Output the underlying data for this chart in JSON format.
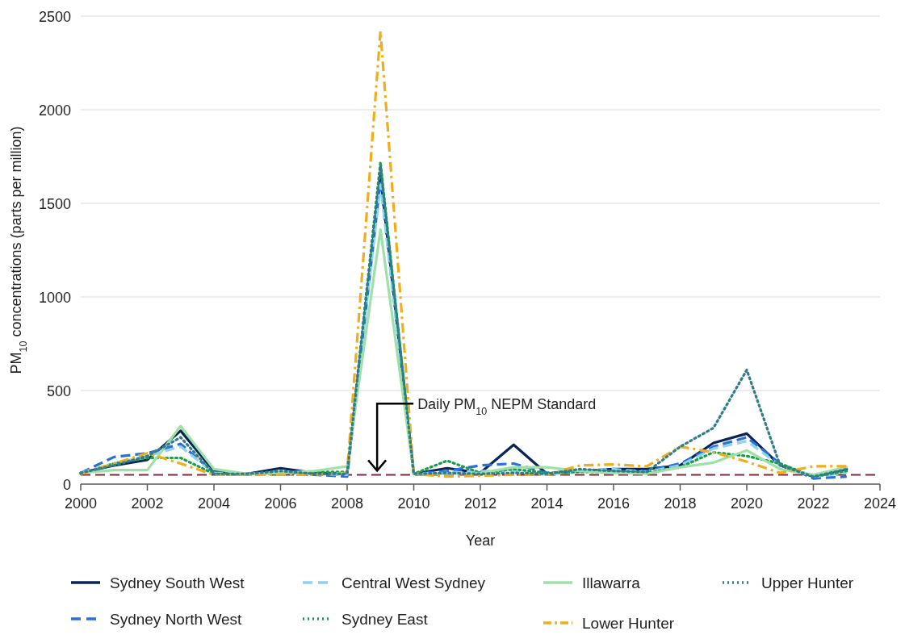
{
  "chart_data": {
    "type": "line",
    "xlabel": "Year",
    "ylabel": "PM$_{10}$ concentrations (parts per million)",
    "x": [
      2000,
      2001,
      2002,
      2003,
      2004,
      2005,
      2006,
      2007,
      2008,
      2009,
      2010,
      2011,
      2012,
      2013,
      2014,
      2015,
      2016,
      2017,
      2018,
      2019,
      2020,
      2021,
      2022,
      2023
    ],
    "xlim": [
      2000,
      2024
    ],
    "xticks": [
      2000,
      2002,
      2004,
      2006,
      2008,
      2010,
      2012,
      2014,
      2016,
      2018,
      2020,
      2022,
      2024
    ],
    "ylim": [
      0,
      2500
    ],
    "yticks": [
      0,
      500,
      1000,
      1500,
      2000,
      2500
    ],
    "grid": "y",
    "legend": "bottom",
    "ref_lines": [
      {
        "axis": "y",
        "value": 50,
        "label": "Daily PM$_{10}$ NEPM Standard",
        "color": "#7a2a3a",
        "line_style": "dashed"
      }
    ],
    "series": [
      {
        "name": "Sydney South West",
        "color": "#0a2457",
        "line_style": "solid",
        "values": [
          60,
          100,
          130,
          285,
          70,
          55,
          85,
          60,
          55,
          1650,
          55,
          85,
          60,
          210,
          55,
          70,
          80,
          80,
          100,
          220,
          270,
          100,
          40,
          80
        ]
      },
      {
        "name": "Sydney North West",
        "color": "#2a6fdb",
        "line_style": "dashed",
        "values": [
          60,
          145,
          165,
          215,
          60,
          55,
          60,
          50,
          40,
          1620,
          55,
          70,
          100,
          110,
          60,
          70,
          75,
          70,
          110,
          200,
          250,
          110,
          30,
          40
        ]
      },
      {
        "name": "Central West Sydney",
        "color": "#8fd3f0",
        "line_style": "dashed",
        "values": [
          60,
          110,
          150,
          200,
          60,
          55,
          60,
          55,
          50,
          1600,
          55,
          60,
          70,
          70,
          50,
          70,
          80,
          65,
          100,
          190,
          230,
          100,
          40,
          60
        ]
      },
      {
        "name": "Sydney East",
        "color": "#1a9e4a",
        "line_style": "dotted",
        "values": [
          55,
          110,
          140,
          140,
          55,
          55,
          55,
          65,
          65,
          1720,
          55,
          125,
          60,
          80,
          60,
          65,
          65,
          60,
          90,
          170,
          150,
          110,
          40,
          70
        ]
      },
      {
        "name": "Illawarra",
        "color": "#9fe0a8",
        "line_style": "solid",
        "values": [
          60,
          75,
          75,
          310,
          80,
          55,
          60,
          70,
          95,
          1360,
          55,
          55,
          60,
          90,
          90,
          70,
          60,
          55,
          90,
          115,
          180,
          80,
          50,
          90
        ]
      },
      {
        "name": "Lower Hunter",
        "color": "#f0ad1c",
        "line_style": "dashdot",
        "values": [
          55,
          110,
          165,
          110,
          50,
          50,
          50,
          50,
          60,
          2420,
          55,
          40,
          45,
          50,
          50,
          100,
          105,
          95,
          200,
          170,
          120,
          60,
          95,
          95
        ]
      },
      {
        "name": "Upper Hunter",
        "color": "#2e7d8c",
        "line_style": "dotted",
        "values": [
          60,
          100,
          150,
          250,
          55,
          55,
          70,
          55,
          55,
          1700,
          55,
          60,
          55,
          60,
          55,
          80,
          70,
          65,
          200,
          300,
          610,
          100,
          40,
          80
        ]
      }
    ]
  }
}
